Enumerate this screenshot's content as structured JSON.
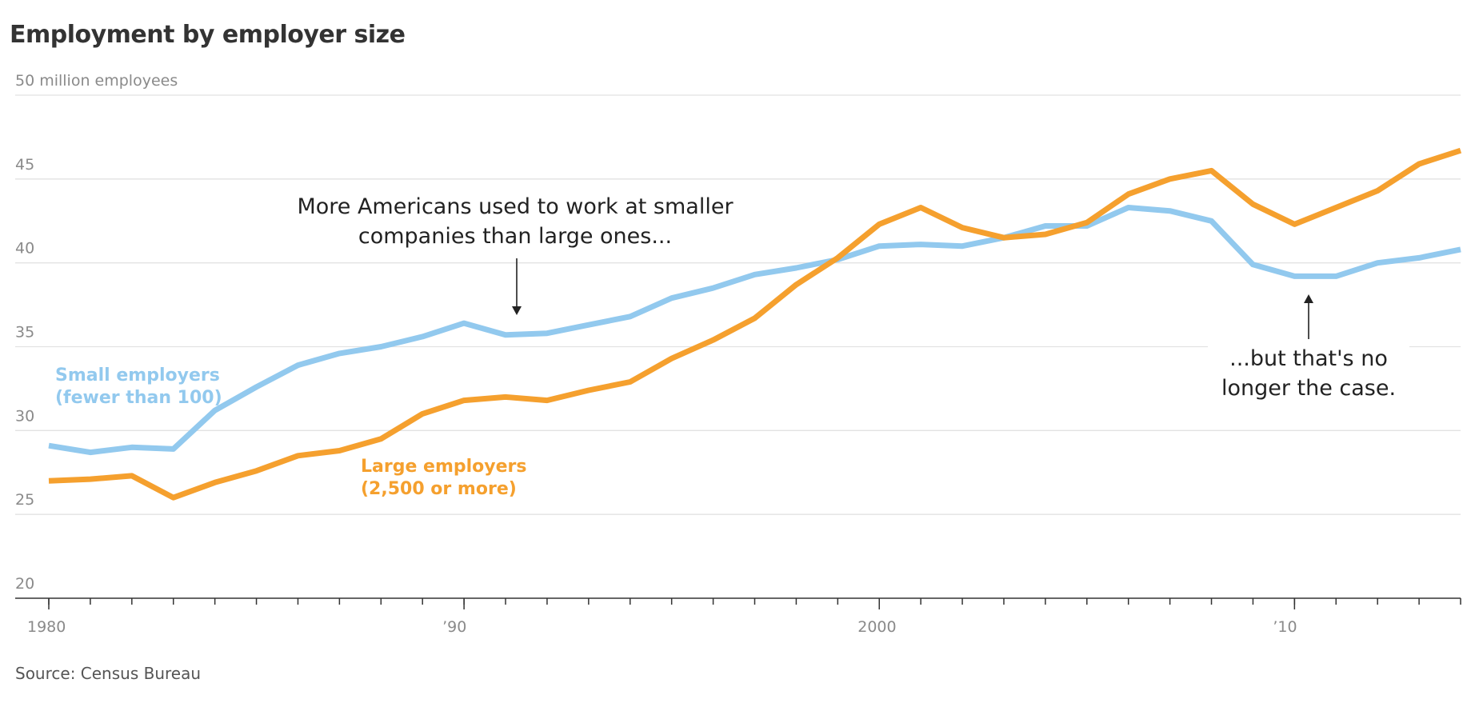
{
  "chart_data": {
    "type": "line",
    "title": "Employment by employer size",
    "source": "Source: Census Bureau",
    "annotations": [
      "More Americans used to work at smaller\ncompanies than large ones...",
      "...but that's no\nlonger the case."
    ],
    "x": [
      1980,
      1981,
      1982,
      1983,
      1984,
      1985,
      1986,
      1987,
      1988,
      1989,
      1990,
      1991,
      1992,
      1993,
      1994,
      1995,
      1996,
      1997,
      1998,
      1999,
      2000,
      2001,
      2002,
      2003,
      2004,
      2005,
      2006,
      2007,
      2008,
      2009,
      2010,
      2011,
      2012,
      2013,
      2014
    ],
    "series": [
      {
        "name": "Small employers\n(fewer than 100)",
        "color": "#92c9ee",
        "values": [
          29.1,
          28.7,
          29.0,
          28.9,
          31.2,
          32.6,
          33.9,
          34.6,
          35.0,
          35.6,
          36.4,
          35.7,
          35.8,
          36.3,
          36.8,
          37.9,
          38.5,
          39.3,
          39.7,
          40.2,
          41.0,
          41.1,
          41.0,
          41.5,
          42.2,
          42.2,
          43.3,
          43.1,
          42.5,
          39.9,
          39.2,
          39.2,
          40.0,
          40.3,
          40.8
        ]
      },
      {
        "name": "Large employers\n(2,500 or more)",
        "color": "#f5a02e",
        "values": [
          27.0,
          27.1,
          27.3,
          26.0,
          26.9,
          27.6,
          28.5,
          28.8,
          29.5,
          31.0,
          31.8,
          32.0,
          31.8,
          32.4,
          32.9,
          34.3,
          35.4,
          36.7,
          38.7,
          40.3,
          42.3,
          43.3,
          42.1,
          41.5,
          41.7,
          42.4,
          44.1,
          45.0,
          45.5,
          43.5,
          42.3,
          43.3,
          44.3,
          45.9,
          46.7
        ]
      }
    ],
    "xlim": [
      1980,
      2014
    ],
    "xticks": [
      1980,
      {
        "value": 1990,
        "label": "’90"
      },
      2000,
      {
        "value": 2010,
        "label": "’10"
      }
    ],
    "ylim": [
      20,
      50
    ],
    "yticks": [
      20,
      25,
      30,
      35,
      40,
      45,
      {
        "value": 50,
        "label": "50 million employees"
      }
    ],
    "grid": true
  }
}
